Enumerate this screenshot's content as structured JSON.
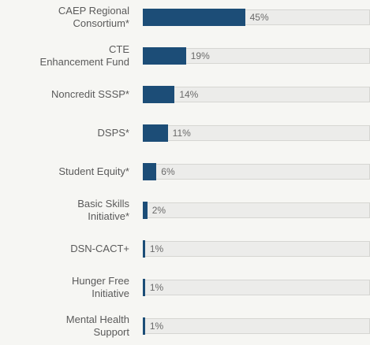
{
  "chart_data": {
    "type": "bar",
    "orientation": "horizontal",
    "categories": [
      "CAEP Regional\nConsortium*",
      "CTE\nEnhancement Fund",
      "Noncredit SSSP*",
      "DSPS*",
      "Student Equity*",
      "Basic Skills\nInitiative*",
      "DSN-CACT+",
      "Hunger Free\nInitiative",
      "Mental Health\nSupport"
    ],
    "values": [
      45,
      19,
      14,
      11,
      6,
      2,
      1,
      1,
      1
    ],
    "value_labels": [
      "45%",
      "19%",
      "14%",
      "11%",
      "6%",
      "2%",
      "1%",
      "1%",
      "1%"
    ],
    "color": "#1c4d77",
    "xlim": [
      0,
      100
    ]
  }
}
